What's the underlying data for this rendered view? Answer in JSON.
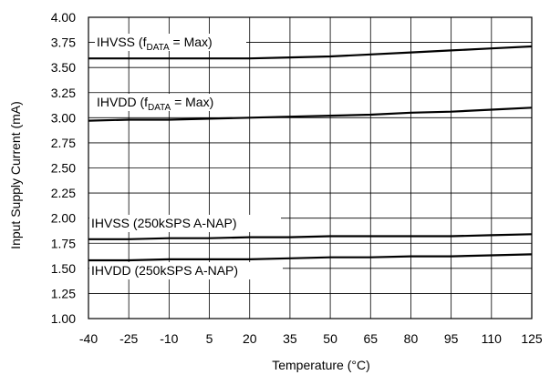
{
  "chart_data": {
    "type": "line",
    "xlabel": "Temperature (°C)",
    "ylabel": "Input Supply Current (mA)",
    "xlim": [
      -40,
      125
    ],
    "ylim": [
      1.0,
      4.0
    ],
    "x_ticks": [
      -40,
      -25,
      -10,
      5,
      20,
      35,
      50,
      65,
      80,
      95,
      110,
      125
    ],
    "y_ticks": [
      "1.00",
      "1.25",
      "1.50",
      "1.75",
      "2.00",
      "2.25",
      "2.50",
      "2.75",
      "3.00",
      "3.25",
      "3.50",
      "3.75",
      "4.00"
    ],
    "grid": true,
    "series": [
      {
        "name": "IHVSS (fDATA = Max)",
        "label_main": "IHVSS (f",
        "label_sub": "DATA",
        "label_tail": " = Max)",
        "x": [
          -40,
          -25,
          -10,
          5,
          20,
          35,
          50,
          65,
          80,
          95,
          110,
          125
        ],
        "y": [
          3.59,
          3.59,
          3.59,
          3.59,
          3.59,
          3.6,
          3.61,
          3.63,
          3.65,
          3.67,
          3.69,
          3.71
        ]
      },
      {
        "name": "IHVDD (fDATA = Max)",
        "label_main": "IHVDD (f",
        "label_sub": "DATA",
        "label_tail": " = Max)",
        "x": [
          -40,
          -25,
          -10,
          5,
          20,
          35,
          50,
          65,
          80,
          95,
          110,
          125
        ],
        "y": [
          2.97,
          2.98,
          2.98,
          2.99,
          3.0,
          3.01,
          3.02,
          3.03,
          3.05,
          3.06,
          3.08,
          3.1
        ]
      },
      {
        "name": "IHVSS (250kSPS A-NAP)",
        "label_main": "IHVSS (250kSPS A-NAP)",
        "x": [
          -40,
          -25,
          -10,
          5,
          20,
          35,
          50,
          65,
          80,
          95,
          110,
          125
        ],
        "y": [
          1.79,
          1.79,
          1.8,
          1.8,
          1.81,
          1.81,
          1.82,
          1.82,
          1.82,
          1.82,
          1.83,
          1.84
        ]
      },
      {
        "name": "IHVDD (250kSPS A-NAP)",
        "label_main": "IHVDD (250kSPS A-NAP)",
        "x": [
          -40,
          -25,
          -10,
          5,
          20,
          35,
          50,
          65,
          80,
          95,
          110,
          125
        ],
        "y": [
          1.58,
          1.58,
          1.59,
          1.59,
          1.59,
          1.6,
          1.61,
          1.61,
          1.62,
          1.62,
          1.63,
          1.64
        ]
      }
    ]
  }
}
